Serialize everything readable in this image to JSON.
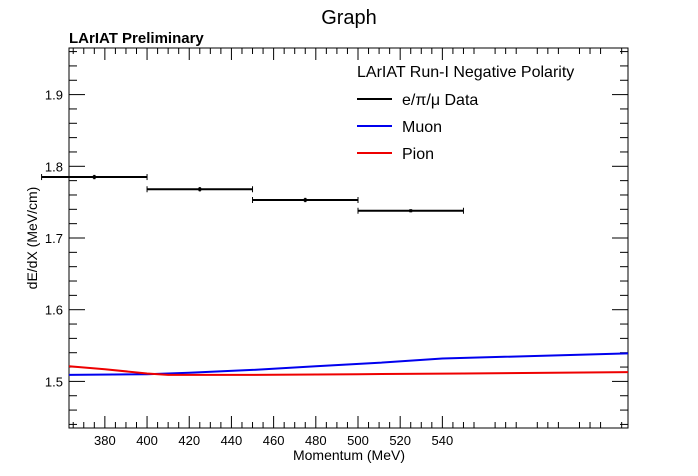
{
  "chart_data": {
    "type": "line",
    "title": "Graph",
    "annotation": "LArIAT Preliminary",
    "xlabel": "Momentum (MeV)",
    "ylabel": "dE/dX (MeV/cm)",
    "xlim": [
      363,
      628
    ],
    "ylim": [
      1.435,
      1.965
    ],
    "x_ticks": [
      380,
      400,
      420,
      440,
      460,
      480,
      500,
      520,
      540
    ],
    "x_tick_labels": [
      "380",
      "400",
      "420",
      "440",
      "460",
      "480",
      "500",
      "520",
      "540"
    ],
    "y_ticks": [
      1.5,
      1.6,
      1.7,
      1.8,
      1.9
    ],
    "y_tick_labels": [
      "1.5",
      "1.6",
      "1.7",
      "1.8",
      "1.9"
    ],
    "legend": {
      "title": "LArIAT Run-I Negative Polarity",
      "placement": "top-right",
      "entries": [
        {
          "label": "e/π/μ Data",
          "color": "#000000"
        },
        {
          "label": "Muon",
          "color": "#0000ee"
        },
        {
          "label": "Pion",
          "color": "#ee0000"
        }
      ]
    },
    "series": [
      {
        "name": "e/π/μ Data",
        "kind": "errorbar",
        "color": "#000000",
        "x": [
          375,
          425,
          475,
          525
        ],
        "xerr": [
          25,
          25,
          25,
          25
        ],
        "y": [
          1.785,
          1.768,
          1.753,
          1.738
        ],
        "yerr": [
          0.003,
          0.003,
          0.003,
          0.002
        ]
      },
      {
        "name": "Muon",
        "kind": "line",
        "color": "#0000ee",
        "x": [
          363,
          400,
          420,
          450,
          480,
          510,
          540,
          628
        ],
        "y": [
          1.509,
          1.51,
          1.512,
          1.516,
          1.521,
          1.526,
          1.532,
          1.539
        ]
      },
      {
        "name": "Pion",
        "kind": "line",
        "color": "#ee0000",
        "x": [
          363,
          380,
          400,
          410,
          450,
          500,
          550,
          628
        ],
        "y": [
          1.521,
          1.517,
          1.511,
          1.509,
          1.509,
          1.51,
          1.511,
          1.513
        ]
      }
    ]
  }
}
